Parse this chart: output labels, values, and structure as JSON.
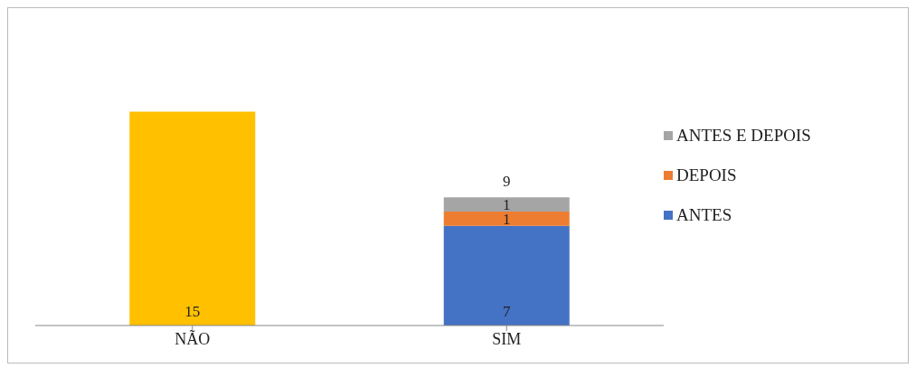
{
  "chart_data": {
    "type": "bar",
    "categories": [
      "NÃO",
      "SIM"
    ],
    "stacked": true,
    "data_labels": true,
    "legend": "right",
    "totals": [
      null,
      "9"
    ],
    "series": [
      {
        "color": "#ffc000",
        "values": [
          15,
          null
        ]
      },
      {
        "name": "ANTES",
        "color": "#4472c4",
        "values": [
          null,
          7
        ]
      },
      {
        "name": "DEPOIS",
        "color": "#ed7d31",
        "values": [
          null,
          1
        ]
      },
      {
        "name": "ANTES E DEPOIS",
        "color": "#a5a5a5",
        "values": [
          null,
          1
        ]
      }
    ]
  }
}
